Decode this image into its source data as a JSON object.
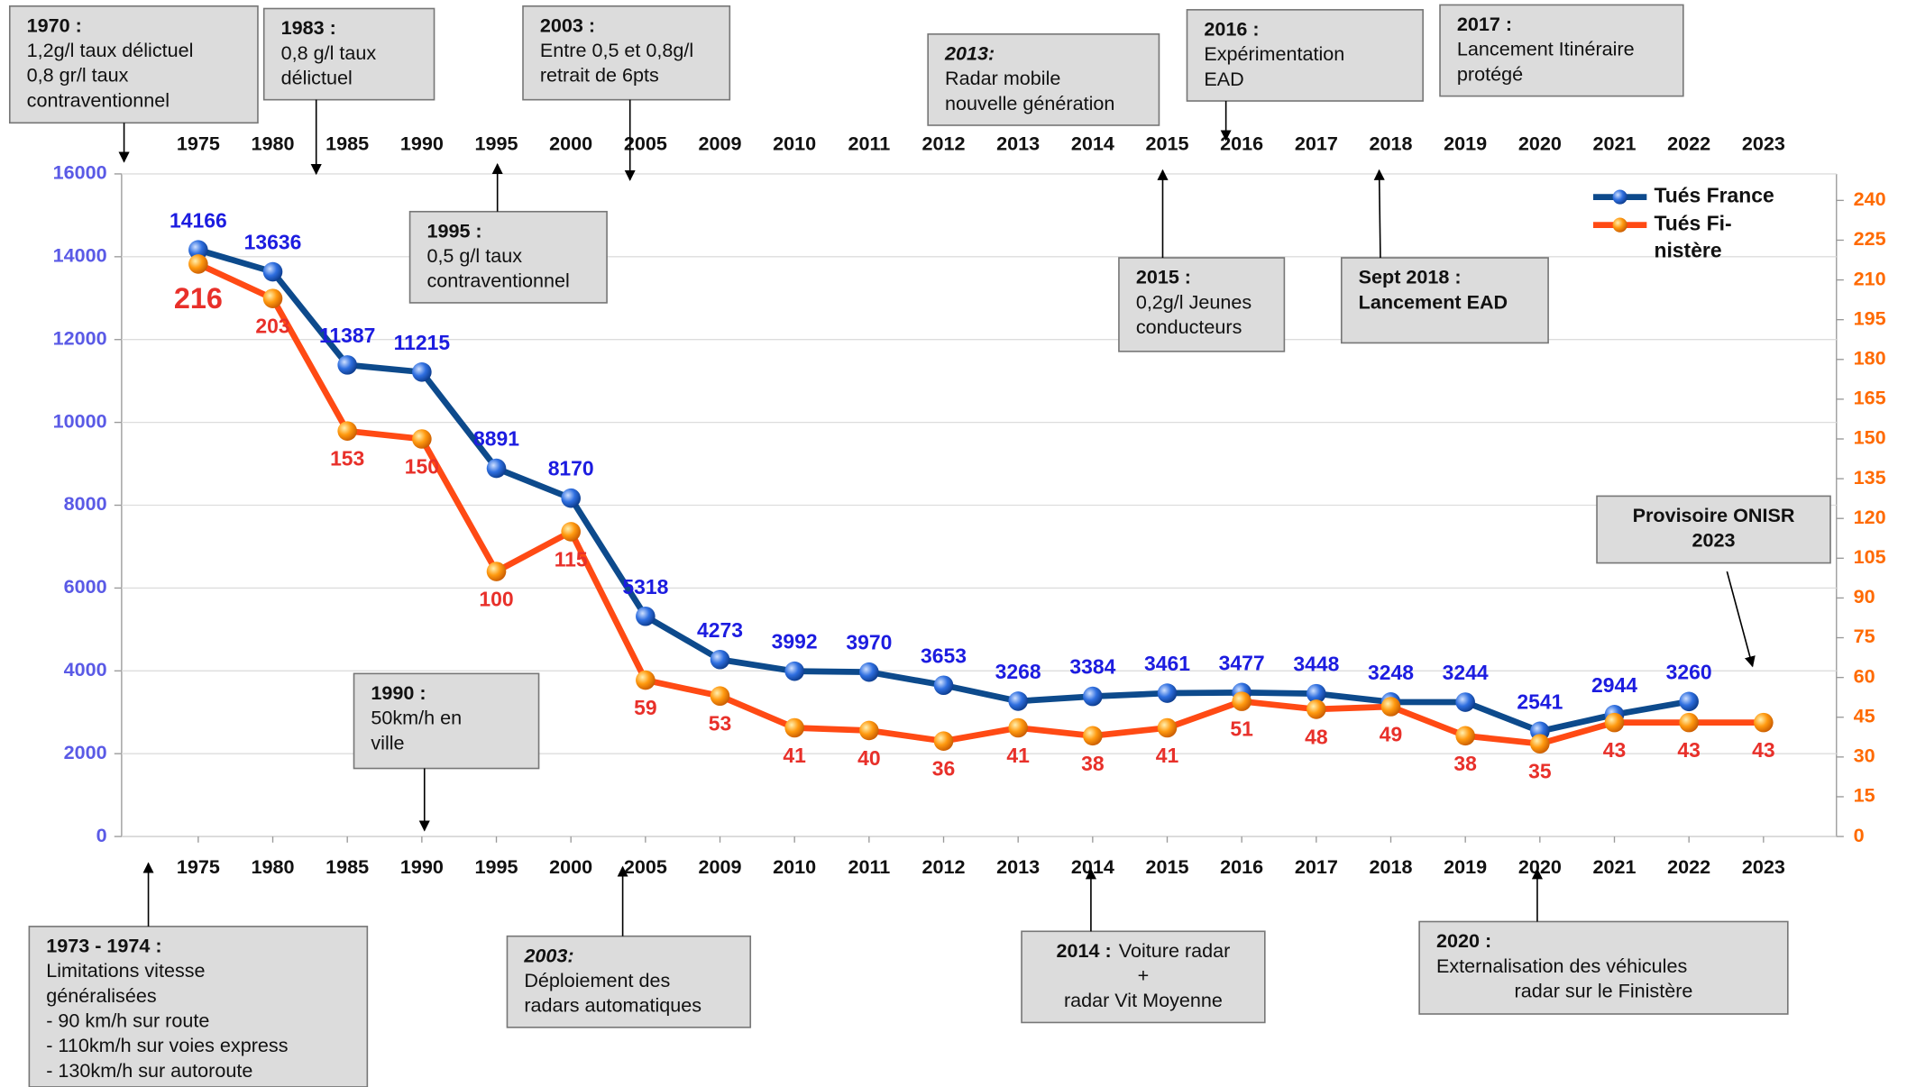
{
  "chart_data": {
    "type": "line",
    "categories": [
      "1975",
      "1980",
      "1985",
      "1990",
      "1995",
      "2000",
      "2005",
      "2009",
      "2010",
      "2011",
      "2012",
      "2013",
      "2014",
      "2015",
      "2016",
      "2017",
      "2018",
      "2019",
      "2020",
      "2021",
      "2022",
      "2023"
    ],
    "series": [
      {
        "name": "Tués France",
        "color": "#0d4a8c",
        "label_color": "#1c1ce0",
        "marker_color": "#2f6fe0",
        "values": [
          14166,
          13636,
          11387,
          11215,
          8891,
          8170,
          5318,
          4273,
          3992,
          3970,
          3653,
          3268,
          3384,
          3461,
          3477,
          3448,
          3248,
          3244,
          2541,
          2944,
          3260,
          null
        ]
      },
      {
        "name": "Tués Fi-nistère",
        "color": "#ff4a14",
        "label_color": "#e8302a",
        "marker_color": "#ff9a10",
        "axis": "y2",
        "values": [
          216,
          203,
          153,
          150,
          100,
          115,
          59,
          53,
          41,
          40,
          36,
          41,
          38,
          41,
          51,
          48,
          49,
          38,
          35,
          43,
          43,
          43
        ]
      }
    ],
    "ylim": [
      0,
      16000
    ],
    "yticks": [
      0,
      2000,
      4000,
      6000,
      8000,
      10000,
      12000,
      14000,
      16000
    ],
    "y2lim": [
      0,
      250
    ],
    "y2ticks": [
      0,
      15,
      30,
      45,
      60,
      75,
      90,
      105,
      120,
      135,
      150,
      165,
      180,
      195,
      210,
      225,
      240
    ],
    "grid": true,
    "legend": "upper right",
    "annotations": [
      {
        "title": "1970 :",
        "lines": [
          "1,2g/l taux délictuel",
          "0,8 gr/l taux",
          "contraventionnel"
        ]
      },
      {
        "title": "1983 :",
        "lines": [
          "0,8 g/l taux",
          "délictuel"
        ]
      },
      {
        "title": "2003 :",
        "lines": [
          "Entre 0,5 et 0,8g/l",
          "retrait de 6pts"
        ]
      },
      {
        "title": "2013:",
        "lines": [
          "Radar mobile",
          "nouvelle génération"
        ]
      },
      {
        "title": "2016 :",
        "lines": [
          "Expérimentation",
          "EAD"
        ]
      },
      {
        "title": "2017 :",
        "lines": [
          "Lancement Itinéraire",
          "protégé"
        ]
      },
      {
        "title": "1995 :",
        "lines": [
          "0,5 g/l taux",
          "contraventionnel"
        ]
      },
      {
        "title": "2015 :",
        "lines": [
          "0,2g/l Jeunes",
          "conducteurs"
        ]
      },
      {
        "title": "Sept 2018 :",
        "lines": [
          "Lancement EAD"
        ]
      },
      {
        "title": "Provisoire ONISR",
        "lines": [
          "2023"
        ]
      },
      {
        "title": "1990 :",
        "lines": [
          "50km/h en",
          "ville"
        ]
      },
      {
        "title": "1973 - 1974 :",
        "lines": [
          "Limitations vitesse",
          "généralisées",
          "- 90 km/h sur route",
          "- 110km/h sur voies express",
          "- 130km/h sur autoroute"
        ]
      },
      {
        "title": "2003:",
        "lines": [
          "Déploiement des",
          "radars automatiques"
        ]
      },
      {
        "title": "2014 :",
        "lines": [
          "Voiture radar",
          "+",
          "radar Vit Moyenne"
        ]
      },
      {
        "title": "2020 :",
        "lines": [
          "Externalisation des véhicules",
          "radar sur le Finistère"
        ]
      }
    ]
  }
}
